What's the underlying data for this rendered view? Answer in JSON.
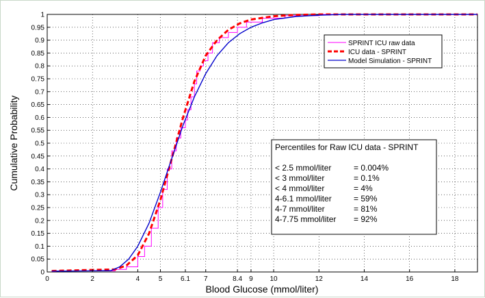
{
  "chart_data": {
    "type": "line",
    "xlabel": "Blood Glucose (mmol/liter)",
    "ylabel": "Cumulative Probability",
    "xlim": [
      0,
      19
    ],
    "ylim": [
      0,
      1
    ],
    "x_ticks": [
      "0",
      "2",
      "4",
      "5",
      "6.1",
      "7",
      "8.4",
      "9",
      "10",
      "12",
      "14",
      "16",
      "18"
    ],
    "x_tick_values": [
      0,
      2,
      4,
      5,
      6.1,
      7,
      8.4,
      9,
      10,
      12,
      14,
      16,
      18
    ],
    "y_ticks": [
      "0",
      "0.05",
      "0.1",
      "0.15",
      "0.2",
      "0.25",
      "0.3",
      "0.35",
      "0.4",
      "0.45",
      "0.5",
      "0.55",
      "0.6",
      "0.65",
      "0.7",
      "0.75",
      "0.8",
      "0.85",
      "0.9",
      "0.95",
      "1"
    ],
    "y_tick_values": [
      0,
      0.05,
      0.1,
      0.15,
      0.2,
      0.25,
      0.3,
      0.35,
      0.4,
      0.45,
      0.5,
      0.55,
      0.6,
      0.65,
      0.7,
      0.75,
      0.8,
      0.85,
      0.9,
      0.95,
      1
    ],
    "grid": true,
    "legend_position": "top-right",
    "series": [
      {
        "name": "SPRINT ICU raw data",
        "color": "#ff00ff",
        "style": "step",
        "x": [
          0.2,
          3.0,
          3.5,
          4.0,
          4.3,
          4.6,
          4.9,
          5.1,
          5.3,
          5.5,
          5.7,
          5.9,
          6.1,
          6.2,
          6.35,
          6.5,
          6.6,
          6.75,
          6.9,
          7.1,
          7.3,
          7.6,
          8.0,
          8.4,
          8.8,
          9.5,
          10.5,
          12.0,
          19.0
        ],
        "y": [
          0.004,
          0.01,
          0.02,
          0.06,
          0.1,
          0.17,
          0.25,
          0.32,
          0.4,
          0.47,
          0.52,
          0.56,
          0.59,
          0.63,
          0.68,
          0.73,
          0.78,
          0.8,
          0.82,
          0.85,
          0.89,
          0.91,
          0.93,
          0.95,
          0.97,
          0.985,
          0.995,
          1.0,
          1.0
        ]
      },
      {
        "name": "ICU data - SPRINT",
        "color": "#ff0000",
        "style": "dashed",
        "x": [
          0.2,
          3.0,
          3.5,
          4.0,
          4.5,
          5.0,
          5.5,
          6.0,
          6.5,
          7.0,
          7.5,
          8.0,
          8.5,
          9.0,
          10.0,
          11.0,
          12.0,
          19.0
        ],
        "y": [
          0.004,
          0.01,
          0.025,
          0.065,
          0.15,
          0.28,
          0.44,
          0.6,
          0.74,
          0.84,
          0.9,
          0.94,
          0.965,
          0.98,
          0.993,
          0.998,
          1.0,
          1.0
        ]
      },
      {
        "name": "Model Simulation - SPRINT",
        "color": "#0000cc",
        "style": "solid",
        "x": [
          0.2,
          2.8,
          3.2,
          3.6,
          4.0,
          4.5,
          5.0,
          5.5,
          6.0,
          6.5,
          7.0,
          7.5,
          8.0,
          8.5,
          9.0,
          9.5,
          10.0,
          11.0,
          12.0,
          13.0,
          19.0
        ],
        "y": [
          0.003,
          0.005,
          0.02,
          0.05,
          0.1,
          0.19,
          0.31,
          0.44,
          0.57,
          0.68,
          0.77,
          0.84,
          0.89,
          0.925,
          0.95,
          0.967,
          0.98,
          0.992,
          0.997,
          1.0,
          1.0
        ]
      }
    ],
    "annotation": {
      "title": "Percentiles for Raw ICU data - SPRINT",
      "rows": [
        {
          "label": "< 2.5 mmol/liter",
          "value": "= 0.004%"
        },
        {
          "label": "< 3 mmol/liter",
          "value": "= 0.1%"
        },
        {
          "label": "< 4 mmol/liter",
          "value": "= 4%"
        },
        {
          "label": "4-6.1 mmol/liter",
          "value": "= 59%"
        },
        {
          "label": "4-7 mmol/liter",
          "value": "= 81%"
        },
        {
          "label": "4-7.75 mmol/liter",
          "value": "= 92%"
        }
      ]
    }
  }
}
